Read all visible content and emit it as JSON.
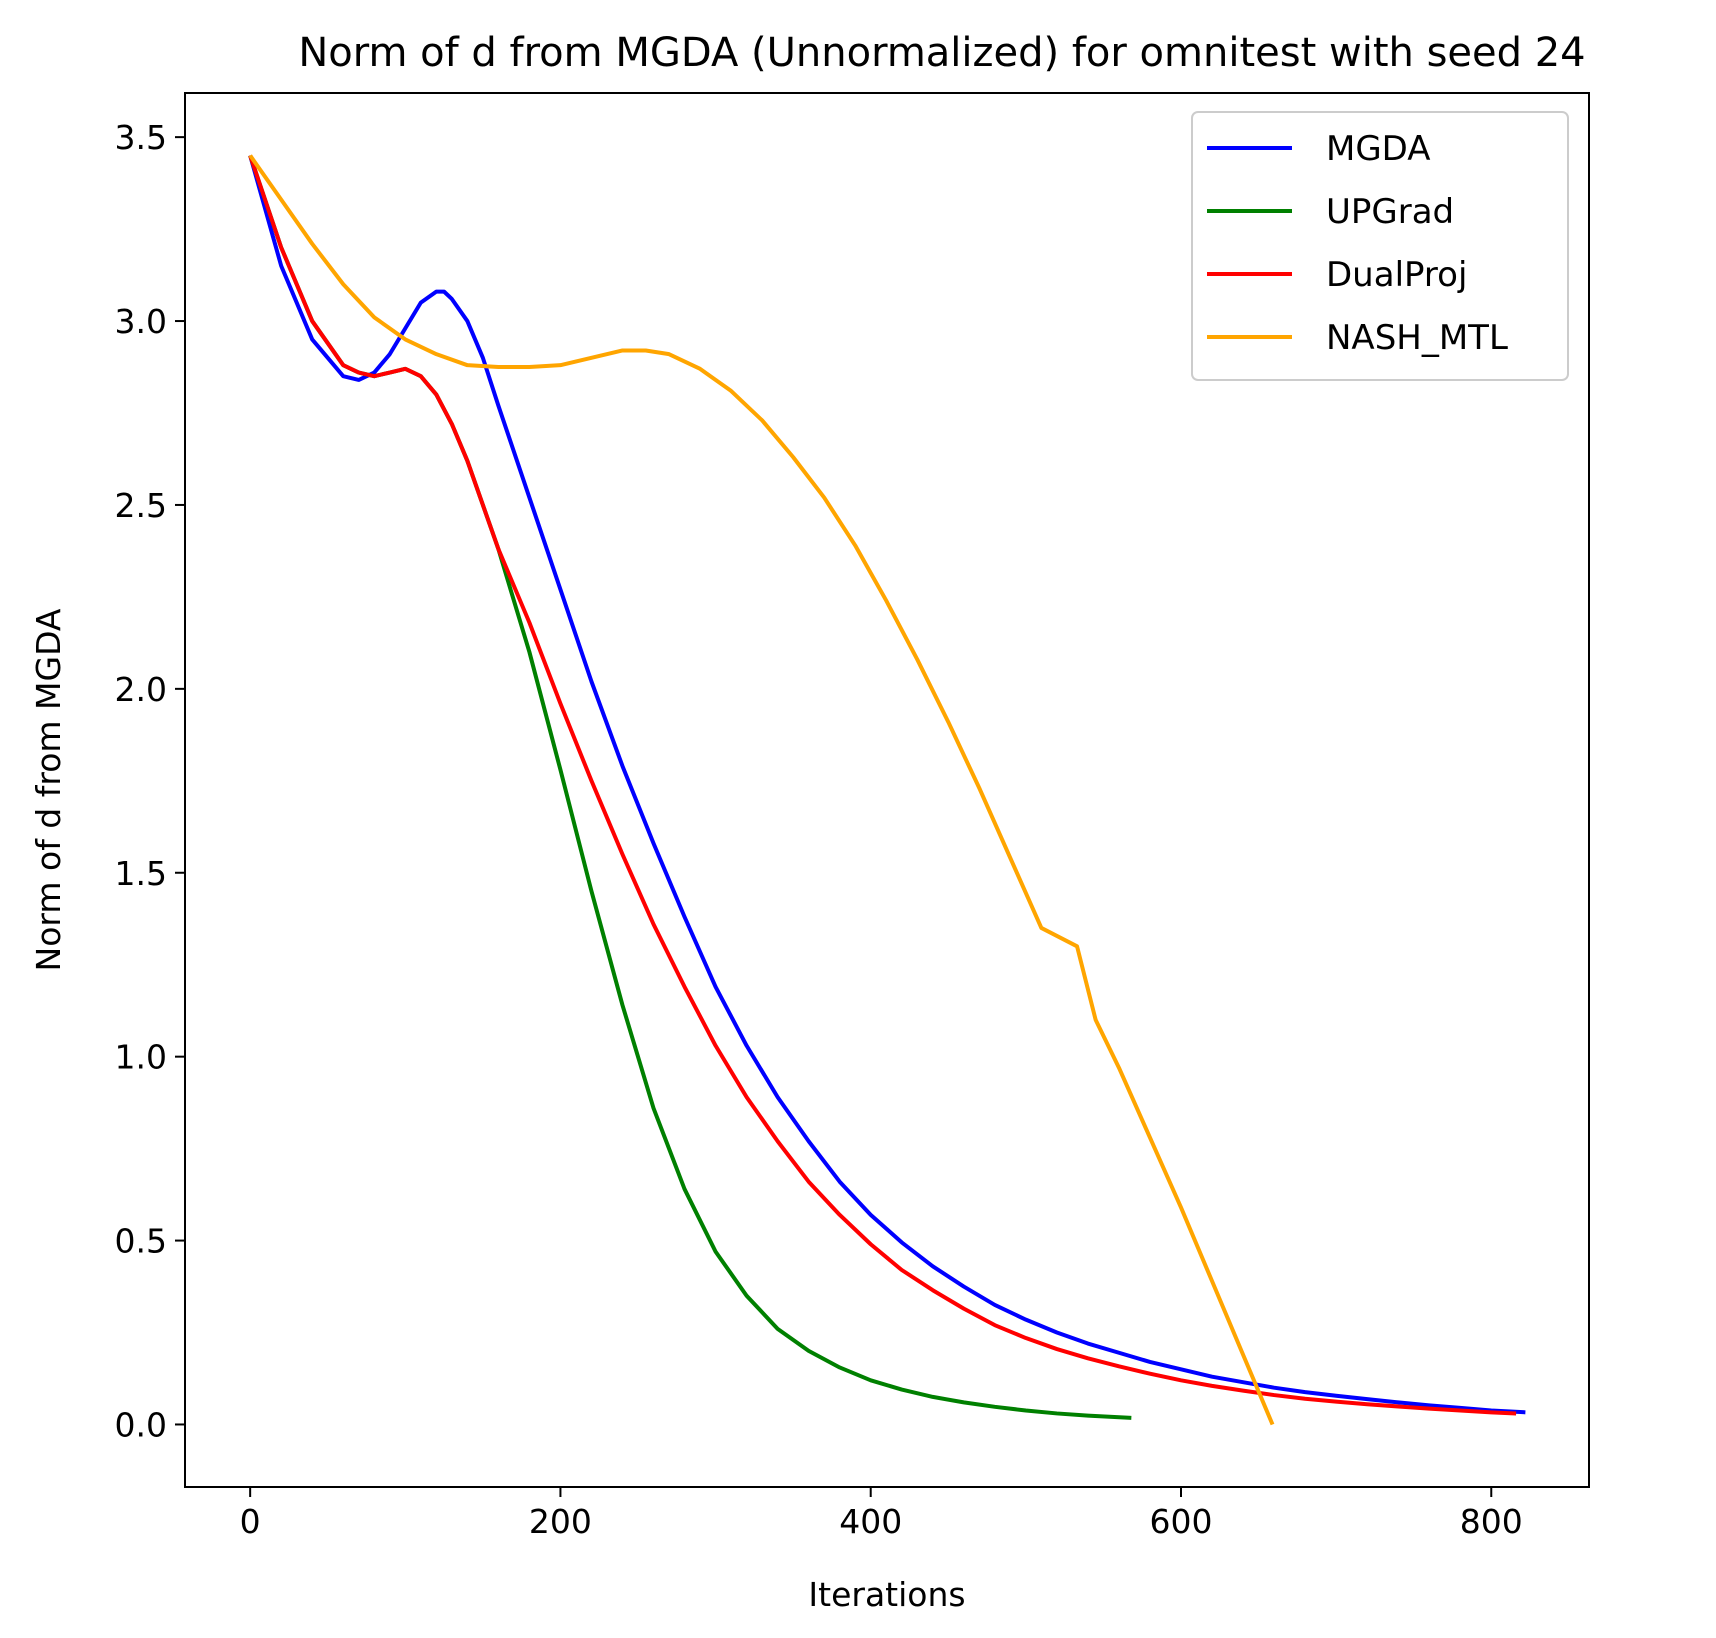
{
  "chart_data": {
    "type": "line",
    "title": "Norm of d from MGDA (Unnormalized) for omnitest with seed 24",
    "xlabel": "Iterations",
    "ylabel": "Norm of d from MGDA",
    "xlim": [
      -42,
      863
    ],
    "ylim": [
      -0.17,
      3.62
    ],
    "xticks": [
      0,
      200,
      400,
      600,
      800
    ],
    "yticks": [
      0.0,
      0.5,
      1.0,
      1.5,
      2.0,
      2.5,
      3.0,
      3.5
    ],
    "xtick_labels": [
      "0",
      "200",
      "400",
      "600",
      "800"
    ],
    "ytick_labels": [
      "0.0",
      "0.5",
      "1.0",
      "1.5",
      "2.0",
      "2.5",
      "3.0",
      "3.5"
    ],
    "grid": false,
    "legend_position": "upper right",
    "series": [
      {
        "name": "MGDA",
        "color": "#0000ff",
        "x": [
          0,
          20,
          40,
          60,
          70,
          80,
          90,
          100,
          110,
          120,
          125,
          130,
          140,
          150,
          160,
          180,
          200,
          220,
          240,
          260,
          280,
          300,
          320,
          340,
          360,
          380,
          400,
          420,
          440,
          460,
          480,
          500,
          520,
          540,
          560,
          580,
          600,
          620,
          640,
          660,
          680,
          700,
          720,
          740,
          760,
          780,
          800,
          822
        ],
        "y": [
          3.45,
          3.15,
          2.95,
          2.85,
          2.84,
          2.86,
          2.91,
          2.98,
          3.05,
          3.08,
          3.08,
          3.06,
          3.0,
          2.9,
          2.77,
          2.52,
          2.27,
          2.02,
          1.79,
          1.58,
          1.38,
          1.19,
          1.03,
          0.89,
          0.77,
          0.66,
          0.57,
          0.495,
          0.43,
          0.375,
          0.325,
          0.285,
          0.25,
          0.22,
          0.195,
          0.17,
          0.15,
          0.13,
          0.115,
          0.1,
          0.088,
          0.078,
          0.069,
          0.06,
          0.052,
          0.045,
          0.038,
          0.033
        ]
      },
      {
        "name": "UPGrad",
        "color": "#008000",
        "x": [
          0,
          20,
          40,
          60,
          70,
          80,
          90,
          100,
          110,
          120,
          130,
          140,
          150,
          160,
          180,
          200,
          220,
          240,
          260,
          280,
          300,
          320,
          340,
          360,
          380,
          400,
          420,
          440,
          460,
          480,
          500,
          520,
          540,
          568
        ],
        "y": [
          3.45,
          3.2,
          3.0,
          2.88,
          2.86,
          2.85,
          2.86,
          2.87,
          2.85,
          2.8,
          2.72,
          2.62,
          2.5,
          2.38,
          2.1,
          1.78,
          1.45,
          1.14,
          0.86,
          0.64,
          0.47,
          0.35,
          0.26,
          0.2,
          0.155,
          0.12,
          0.095,
          0.075,
          0.06,
          0.048,
          0.038,
          0.03,
          0.024,
          0.018
        ]
      },
      {
        "name": "DualProj",
        "color": "#ff0000",
        "x": [
          0,
          20,
          40,
          60,
          70,
          80,
          90,
          100,
          110,
          120,
          130,
          140,
          150,
          160,
          180,
          200,
          220,
          240,
          260,
          280,
          300,
          320,
          340,
          360,
          380,
          400,
          420,
          440,
          460,
          480,
          500,
          520,
          540,
          560,
          580,
          600,
          620,
          640,
          660,
          680,
          700,
          720,
          740,
          760,
          780,
          800,
          816
        ],
        "y": [
          3.45,
          3.2,
          3.0,
          2.88,
          2.86,
          2.85,
          2.86,
          2.87,
          2.85,
          2.8,
          2.72,
          2.62,
          2.5,
          2.38,
          2.18,
          1.96,
          1.75,
          1.55,
          1.36,
          1.19,
          1.03,
          0.89,
          0.77,
          0.66,
          0.57,
          0.49,
          0.42,
          0.365,
          0.315,
          0.27,
          0.235,
          0.205,
          0.18,
          0.158,
          0.138,
          0.12,
          0.105,
          0.092,
          0.08,
          0.07,
          0.062,
          0.055,
          0.049,
          0.043,
          0.038,
          0.033,
          0.03
        ]
      },
      {
        "name": "NASH_MTL",
        "color": "#ffa500",
        "x": [
          0,
          20,
          40,
          60,
          80,
          100,
          120,
          140,
          160,
          180,
          200,
          220,
          240,
          255,
          270,
          290,
          310,
          330,
          350,
          370,
          390,
          410,
          430,
          450,
          470,
          490,
          510,
          533,
          545,
          560,
          580,
          600,
          620,
          640,
          659
        ],
        "y": [
          3.45,
          3.33,
          3.21,
          3.1,
          3.01,
          2.95,
          2.91,
          2.88,
          2.875,
          2.875,
          2.88,
          2.9,
          2.92,
          2.92,
          2.91,
          2.87,
          2.81,
          2.73,
          2.63,
          2.52,
          2.39,
          2.24,
          2.08,
          1.91,
          1.73,
          1.54,
          1.35,
          1.3,
          1.1,
          0.97,
          0.78,
          0.59,
          0.39,
          0.19,
          0.0
        ]
      }
    ]
  }
}
